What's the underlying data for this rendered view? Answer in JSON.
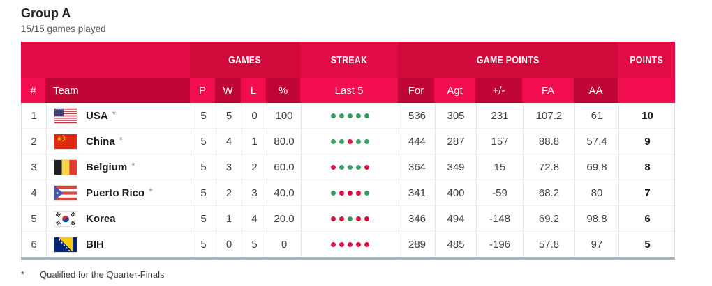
{
  "page": {
    "title": "Group A",
    "subtitle": "15/15 games played",
    "footnote": {
      "symbol": "*",
      "text": "Qualified for the Quarter-Finals"
    }
  },
  "colors": {
    "header_group_light": "#e20b44",
    "header_group_dark": "#d20a3c",
    "header_col_light": "#f20e4e",
    "header_col_dark": "#bf0634",
    "bottom_bar": "#a9b2b9"
  },
  "table": {
    "group_headers": {
      "games": "GAMES",
      "streak": "STREAK",
      "game_points": "GAME POINTS",
      "points": "POINTS"
    },
    "columns": {
      "rank": "#",
      "team": "Team",
      "played": "P",
      "wins": "W",
      "losses": "L",
      "pct": "%",
      "last5": "Last 5",
      "for": "For",
      "against": "Agt",
      "plus_minus": "+/-",
      "fa": "FA",
      "aa": "AA"
    },
    "legend": {
      "win_color": "#3d9c66",
      "loss_color": "#d5113f"
    },
    "rows": [
      {
        "rank": "1",
        "name": "USA",
        "star": "*",
        "flag": "usa",
        "p": "5",
        "w": "5",
        "l": "0",
        "pct": "100",
        "last5": [
          "W",
          "W",
          "W",
          "W",
          "W"
        ],
        "pts_for": "536",
        "pts_agt": "305",
        "plus_minus": "231",
        "fa": "107.2",
        "aa": "61",
        "points": "10"
      },
      {
        "rank": "2",
        "name": "China",
        "star": "*",
        "flag": "chn",
        "p": "5",
        "w": "4",
        "l": "1",
        "pct": "80.0",
        "last5": [
          "W",
          "W",
          "L",
          "W",
          "W"
        ],
        "pts_for": "444",
        "pts_agt": "287",
        "plus_minus": "157",
        "fa": "88.8",
        "aa": "57.4",
        "points": "9"
      },
      {
        "rank": "3",
        "name": "Belgium",
        "star": "*",
        "flag": "bel",
        "p": "5",
        "w": "3",
        "l": "2",
        "pct": "60.0",
        "last5": [
          "L",
          "W",
          "W",
          "W",
          "L"
        ],
        "pts_for": "364",
        "pts_agt": "349",
        "plus_minus": "15",
        "fa": "72.8",
        "aa": "69.8",
        "points": "8"
      },
      {
        "rank": "4",
        "name": "Puerto Rico",
        "star": "*",
        "flag": "pur",
        "p": "5",
        "w": "2",
        "l": "3",
        "pct": "40.0",
        "last5": [
          "W",
          "L",
          "L",
          "L",
          "W"
        ],
        "pts_for": "341",
        "pts_agt": "400",
        "plus_minus": "-59",
        "fa": "68.2",
        "aa": "80",
        "points": "7"
      },
      {
        "rank": "5",
        "name": "Korea",
        "star": "",
        "flag": "kor",
        "p": "5",
        "w": "1",
        "l": "4",
        "pct": "20.0",
        "last5": [
          "L",
          "L",
          "W",
          "L",
          "L"
        ],
        "pts_for": "346",
        "pts_agt": "494",
        "plus_minus": "-148",
        "fa": "69.2",
        "aa": "98.8",
        "points": "6"
      },
      {
        "rank": "6",
        "name": "BIH",
        "star": "",
        "flag": "bih",
        "p": "5",
        "w": "0",
        "l": "5",
        "pct": "0",
        "last5": [
          "L",
          "L",
          "L",
          "L",
          "L"
        ],
        "pts_for": "289",
        "pts_agt": "485",
        "plus_minus": "-196",
        "fa": "57.8",
        "aa": "97",
        "points": "5"
      }
    ]
  }
}
